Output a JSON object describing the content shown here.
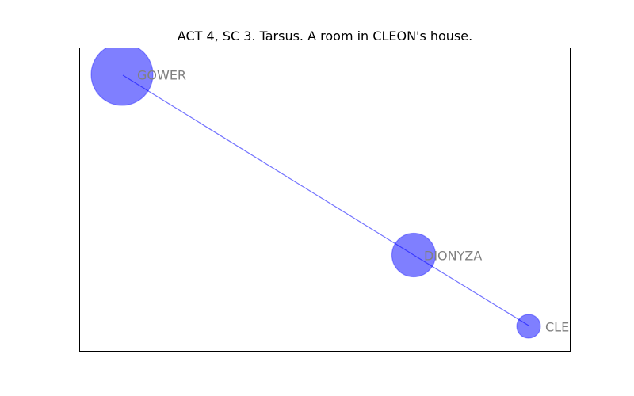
{
  "title": "ACT 4, SC 3. Tarsus. A room in CLEON's house.",
  "colors": {
    "node_fill": "#0000ff",
    "node_fill_opacity": 0.5,
    "edge": "#0000ff",
    "edge_opacity": 0.55,
    "label": "#808080",
    "frame": "#000000"
  },
  "nodes": [
    {
      "id": "GOWER",
      "label": "GOWER",
      "relative_size": 1.0
    },
    {
      "id": "DIONYZA",
      "label": "DIONYZA",
      "relative_size": 0.7
    },
    {
      "id": "CLEON",
      "label": "CLEON",
      "relative_size": 0.4
    }
  ],
  "edges": [
    {
      "source": "GOWER",
      "target": "DIONYZA"
    },
    {
      "source": "DIONYZA",
      "target": "CLEON"
    }
  ]
}
